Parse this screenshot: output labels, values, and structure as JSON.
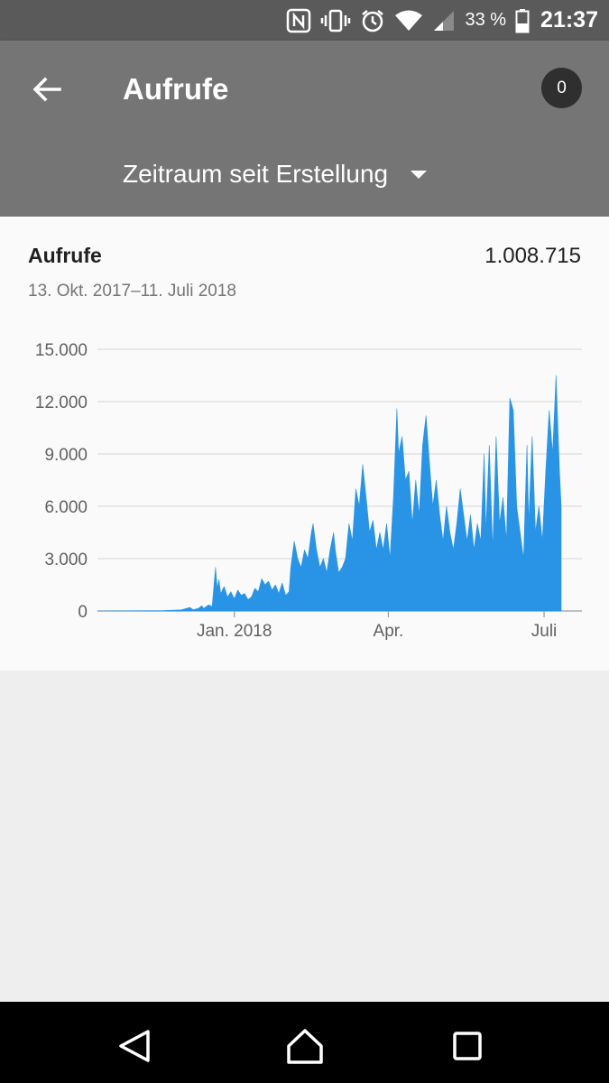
{
  "status_bar": {
    "battery_percent": "33 %",
    "time": "21:37",
    "icons": [
      "nfc-icon",
      "vibrate-icon",
      "alarm-icon",
      "wifi-icon",
      "signal-icon",
      "battery-icon"
    ]
  },
  "header": {
    "title": "Aufrufe",
    "notification_count": "0",
    "period_selector": "Zeitraum seit Erstellung"
  },
  "card": {
    "title": "Aufrufe",
    "total": "1.008.715",
    "date_range": "13. Okt. 2017–11. Juli 2018"
  },
  "chart_data": {
    "type": "area",
    "title": "",
    "xlabel": "",
    "ylabel": "",
    "ylim": [
      0,
      15000
    ],
    "xlim": [
      "2017-10-13",
      "2018-07-11"
    ],
    "y_ticks": [
      "15.000",
      "12.000",
      "9.000",
      "6.000",
      "3.000",
      "0"
    ],
    "y_tick_values": [
      15000,
      12000,
      9000,
      6000,
      3000,
      0
    ],
    "x_ticks": [
      {
        "label": "Jan. 2018",
        "date": "2018-01-01"
      },
      {
        "label": "Apr.",
        "date": "2018-04-01"
      },
      {
        "label": "Juli",
        "date": "2018-07-01"
      }
    ],
    "grid": true,
    "color": "#2994e6",
    "series": [
      {
        "values": [
          [
            "2017-10-13",
            0
          ],
          [
            "2017-11-01",
            10
          ],
          [
            "2017-11-20",
            20
          ],
          [
            "2017-12-01",
            60
          ],
          [
            "2017-12-06",
            200
          ],
          [
            "2017-12-08",
            80
          ],
          [
            "2017-12-11",
            150
          ],
          [
            "2017-12-13",
            300
          ],
          [
            "2017-12-14",
            150
          ],
          [
            "2017-12-17",
            350
          ],
          [
            "2017-12-19",
            250
          ],
          [
            "2017-12-21",
            2500
          ],
          [
            "2017-12-22",
            1300
          ],
          [
            "2017-12-23",
            1800
          ],
          [
            "2017-12-24",
            1000
          ],
          [
            "2017-12-26",
            1400
          ],
          [
            "2017-12-28",
            800
          ],
          [
            "2017-12-30",
            1100
          ],
          [
            "2018-01-01",
            700
          ],
          [
            "2018-01-03",
            1200
          ],
          [
            "2018-01-05",
            900
          ],
          [
            "2018-01-07",
            1000
          ],
          [
            "2018-01-09",
            650
          ],
          [
            "2018-01-11",
            800
          ],
          [
            "2018-01-13",
            1300
          ],
          [
            "2018-01-15",
            1100
          ],
          [
            "2018-01-17",
            1850
          ],
          [
            "2018-01-19",
            1500
          ],
          [
            "2018-01-21",
            1700
          ],
          [
            "2018-01-23",
            1200
          ],
          [
            "2018-01-25",
            1500
          ],
          [
            "2018-01-27",
            1000
          ],
          [
            "2018-01-29",
            1600
          ],
          [
            "2018-01-31",
            900
          ],
          [
            "2018-02-02",
            1100
          ],
          [
            "2018-02-03",
            2500
          ],
          [
            "2018-02-05",
            4000
          ],
          [
            "2018-02-07",
            3000
          ],
          [
            "2018-02-09",
            2500
          ],
          [
            "2018-02-11",
            3500
          ],
          [
            "2018-02-13",
            3000
          ],
          [
            "2018-02-15",
            4500
          ],
          [
            "2018-02-16",
            5000
          ],
          [
            "2018-02-18",
            3500
          ],
          [
            "2018-02-20",
            2500
          ],
          [
            "2018-02-22",
            3000
          ],
          [
            "2018-02-24",
            2200
          ],
          [
            "2018-02-26",
            3500
          ],
          [
            "2018-02-28",
            4500
          ],
          [
            "2018-03-01",
            3500
          ],
          [
            "2018-03-03",
            2200
          ],
          [
            "2018-03-05",
            2500
          ],
          [
            "2018-03-07",
            3000
          ],
          [
            "2018-03-09",
            5000
          ],
          [
            "2018-03-11",
            4000
          ],
          [
            "2018-03-13",
            7000
          ],
          [
            "2018-03-15",
            6000
          ],
          [
            "2018-03-17",
            8400
          ],
          [
            "2018-03-19",
            6500
          ],
          [
            "2018-03-21",
            4500
          ],
          [
            "2018-03-23",
            5200
          ],
          [
            "2018-03-25",
            3500
          ],
          [
            "2018-03-27",
            4500
          ],
          [
            "2018-03-29",
            3500
          ],
          [
            "2018-03-31",
            5000
          ],
          [
            "2018-04-02",
            3000
          ],
          [
            "2018-04-04",
            6500
          ],
          [
            "2018-04-06",
            11600
          ],
          [
            "2018-04-07",
            9000
          ],
          [
            "2018-04-09",
            10000
          ],
          [
            "2018-04-11",
            7500
          ],
          [
            "2018-04-13",
            8000
          ],
          [
            "2018-04-15",
            5000
          ],
          [
            "2018-04-17",
            7500
          ],
          [
            "2018-04-19",
            5500
          ],
          [
            "2018-04-21",
            9500
          ],
          [
            "2018-04-23",
            11200
          ],
          [
            "2018-04-25",
            8500
          ],
          [
            "2018-04-27",
            6000
          ],
          [
            "2018-04-29",
            7500
          ],
          [
            "2018-05-01",
            5500
          ],
          [
            "2018-05-03",
            4000
          ],
          [
            "2018-05-05",
            6000
          ],
          [
            "2018-05-07",
            4500
          ],
          [
            "2018-05-09",
            3500
          ],
          [
            "2018-05-11",
            5000
          ],
          [
            "2018-05-13",
            7000
          ],
          [
            "2018-05-15",
            5500
          ],
          [
            "2018-05-17",
            4000
          ],
          [
            "2018-05-19",
            5500
          ],
          [
            "2018-05-21",
            3500
          ],
          [
            "2018-05-23",
            5000
          ],
          [
            "2018-05-25",
            4000
          ],
          [
            "2018-05-27",
            9000
          ],
          [
            "2018-05-28",
            4500
          ],
          [
            "2018-05-30",
            9500
          ],
          [
            "2018-06-01",
            3500
          ],
          [
            "2018-06-03",
            10000
          ],
          [
            "2018-06-05",
            5000
          ],
          [
            "2018-06-07",
            6500
          ],
          [
            "2018-06-09",
            4000
          ],
          [
            "2018-06-11",
            12200
          ],
          [
            "2018-06-13",
            11500
          ],
          [
            "2018-06-15",
            6000
          ],
          [
            "2018-06-17",
            4500
          ],
          [
            "2018-06-19",
            3000
          ],
          [
            "2018-06-21",
            9500
          ],
          [
            "2018-06-22",
            5000
          ],
          [
            "2018-06-24",
            10000
          ],
          [
            "2018-06-26",
            4500
          ],
          [
            "2018-06-28",
            6000
          ],
          [
            "2018-06-30",
            4000
          ],
          [
            "2018-07-02",
            8000
          ],
          [
            "2018-07-04",
            11500
          ],
          [
            "2018-07-06",
            9000
          ],
          [
            "2018-07-08",
            13500
          ],
          [
            "2018-07-10",
            8000
          ],
          [
            "2018-07-11",
            6000
          ]
        ]
      }
    ]
  }
}
